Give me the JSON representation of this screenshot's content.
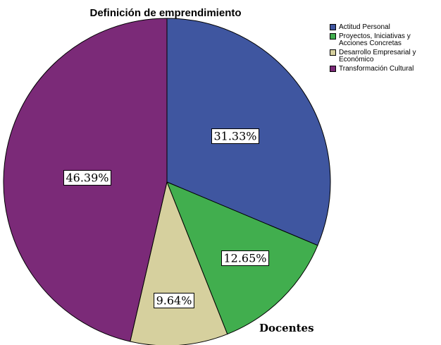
{
  "chart_data": {
    "type": "pie",
    "title": "Definición de emprendimiento",
    "categories": [
      "Actitud Personal",
      "Proyectos, Iniciativas y\nAcciones Concretas",
      "Desarrollo Empresarial y\nEconómico",
      "Transformación Cultural"
    ],
    "values": [
      31.33,
      12.65,
      9.64,
      46.39
    ],
    "value_labels": [
      "31.33%",
      "12.65%",
      "9.64%",
      "46.39%"
    ],
    "colors": [
      "#3F56A0",
      "#41AE4E",
      "#D6D09E",
      "#7B2A78"
    ],
    "legend_position": "top-right",
    "start": "12 o'clock",
    "direction": "clockwise"
  },
  "footer_label": "Docentes"
}
